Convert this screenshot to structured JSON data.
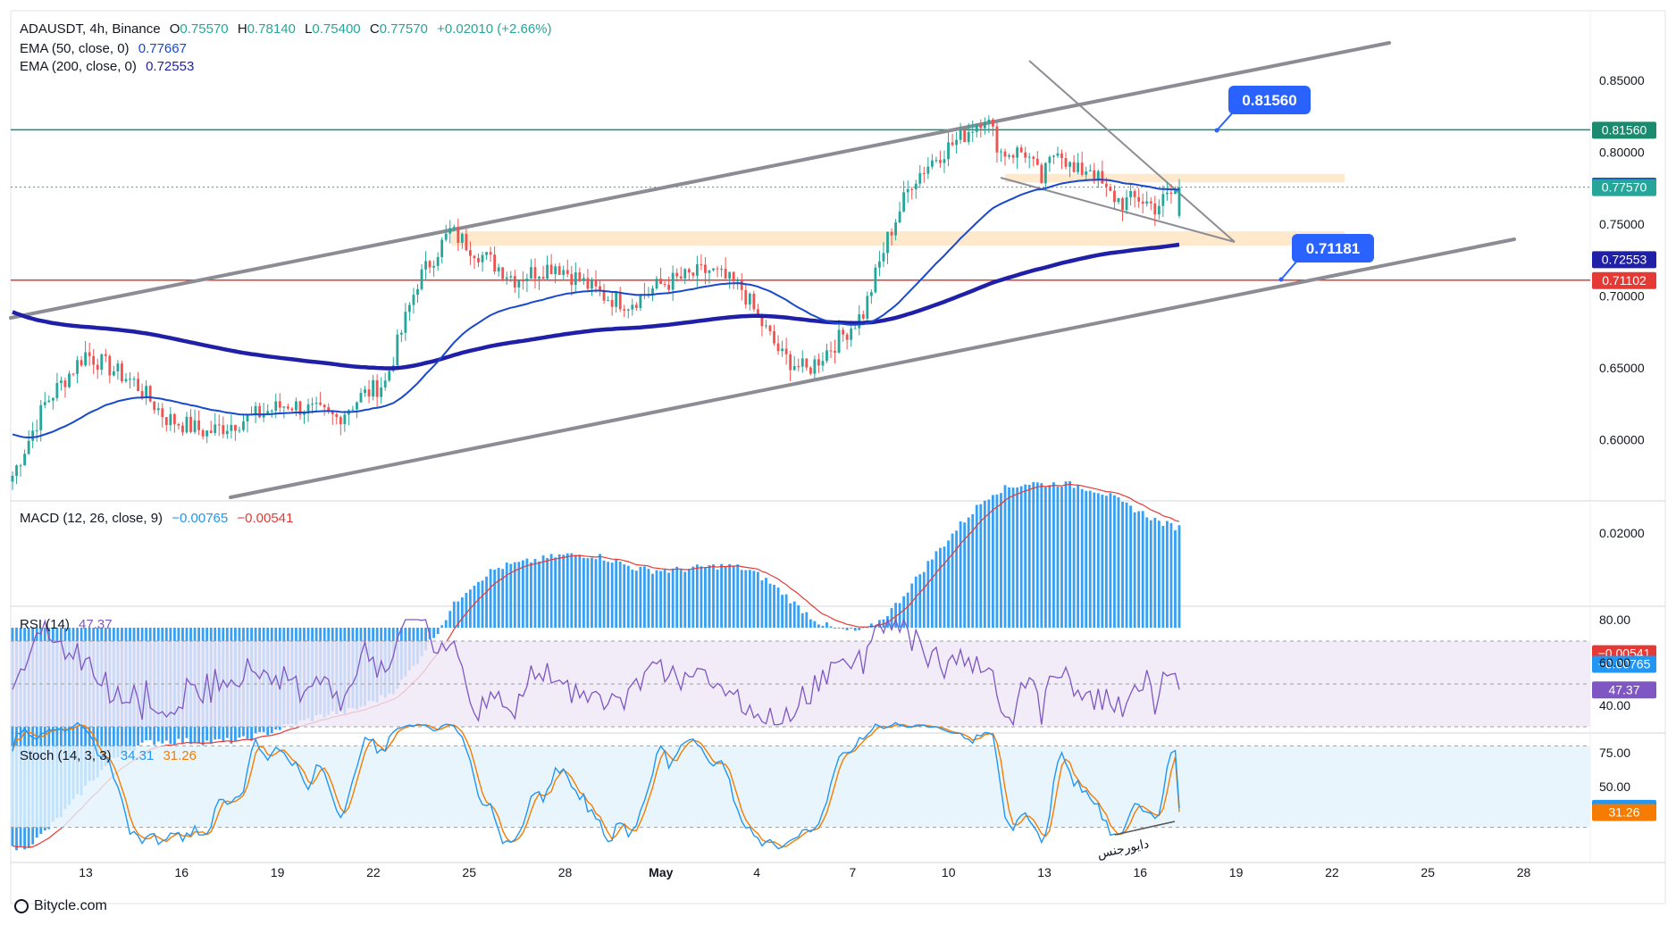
{
  "header": {
    "symbol": "ADAUSDT, 4h, Binance",
    "open_label": "O",
    "open": "0.75570",
    "high_label": "H",
    "high": "0.78140",
    "low_label": "L",
    "low": "0.75400",
    "close_label": "C",
    "close": "0.77570",
    "change": "+0.02010 (+2.66%)",
    "ema50_label": "EMA (50, close, 0)",
    "ema50_value": "0.77667",
    "ema200_label": "EMA (200, close, 0)",
    "ema200_value": "0.72553"
  },
  "macd_legend": {
    "label": "MACD (12, 26, close, 9)",
    "value1": "−0.00765",
    "value2": "−0.00541"
  },
  "rsi_legend": {
    "label": "RSI (14)",
    "value": "47.37"
  },
  "stoch_legend": {
    "label": "Stoch (14, 3, 3)",
    "value1": "34.31",
    "value2": "31.26"
  },
  "footer": {
    "brand": "Bitycle.com"
  },
  "colors": {
    "up": "#26a69a",
    "down": "#ef5350",
    "ema50": "#1848cc",
    "ema200": "#1f1fa8",
    "channel": "#8c8c94",
    "support": "#e53935",
    "resistance": "#1b8a6f",
    "zone": "#fde2bc",
    "callout": "#2962ff",
    "macd_hist": "#2196f3",
    "signal": "#e53935",
    "rsi": "#7e57c2",
    "stoch_k": "#2196f3",
    "stoch_d": "#f57c00"
  },
  "chart_data": [
    {
      "type": "candlestick",
      "title": "ADAUSDT, 4h, Binance",
      "x_ticks": [
        "13",
        "16",
        "19",
        "22",
        "25",
        "28",
        "May",
        "4",
        "7",
        "10",
        "13",
        "16",
        "19",
        "22",
        "25",
        "28"
      ],
      "y_ticks": [
        "0.85000",
        "0.80000",
        "0.75000",
        "0.70000",
        "0.65000",
        "0.60000"
      ],
      "ylim": [
        0.562,
        0.899
      ],
      "last_ohlc": {
        "open": 0.7557,
        "high": 0.7814,
        "low": 0.754,
        "close": 0.7757
      },
      "price_labels": [
        {
          "text": "0.81560",
          "value": 0.8156,
          "kind": "resistance"
        },
        {
          "text": "0.77667",
          "value": 0.77667,
          "kind": "ema50"
        },
        {
          "text": "0.77570",
          "value": 0.7757,
          "kind": "last"
        },
        {
          "text": "0.72553",
          "value": 0.72553,
          "kind": "ema200"
        },
        {
          "text": "0.71102",
          "value": 0.71102,
          "kind": "support"
        }
      ],
      "annotations": [
        {
          "text": "0.81560",
          "value": 0.8156
        },
        {
          "text": "0.71181",
          "value": 0.71181
        }
      ],
      "series": [
        {
          "name": "EMA (50, close, 0)",
          "last": 0.77667
        },
        {
          "name": "EMA (200, close, 0)",
          "last": 0.72553
        }
      ],
      "anchors": [
        [
          0,
          0.575
        ],
        [
          8,
          0.625
        ],
        [
          18,
          0.66
        ],
        [
          30,
          0.64
        ],
        [
          38,
          0.615
        ],
        [
          48,
          0.605
        ],
        [
          58,
          0.615
        ],
        [
          68,
          0.625
        ],
        [
          80,
          0.615
        ],
        [
          86,
          0.63
        ],
        [
          92,
          0.64
        ],
        [
          100,
          0.71
        ],
        [
          108,
          0.745
        ],
        [
          116,
          0.728
        ],
        [
          124,
          0.712
        ],
        [
          134,
          0.722
        ],
        [
          146,
          0.7
        ],
        [
          152,
          0.695
        ],
        [
          160,
          0.708
        ],
        [
          172,
          0.718
        ],
        [
          180,
          0.705
        ],
        [
          184,
          0.685
        ],
        [
          190,
          0.658
        ],
        [
          196,
          0.648
        ],
        [
          204,
          0.67
        ],
        [
          210,
          0.688
        ],
        [
          216,
          0.74
        ],
        [
          222,
          0.78
        ],
        [
          228,
          0.797
        ],
        [
          234,
          0.81
        ],
        [
          240,
          0.826
        ],
        [
          244,
          0.8
        ],
        [
          250,
          0.8
        ],
        [
          254,
          0.78
        ],
        [
          258,
          0.805
        ],
        [
          262,
          0.785
        ],
        [
          266,
          0.79
        ],
        [
          270,
          0.772
        ],
        [
          274,
          0.765
        ],
        [
          278,
          0.768
        ],
        [
          282,
          0.762
        ],
        [
          288,
          0.775
        ]
      ],
      "candle_count": 289
    },
    {
      "type": "bar",
      "title": "MACD (12, 26, close, 9)",
      "y_ticks": [
        "0.02000"
      ],
      "ylim": [
        -0.019,
        0.037
      ],
      "price_labels": [
        {
          "text": "−0.00541",
          "value": -0.00541,
          "kind": "signal"
        },
        {
          "text": "−0.00765",
          "value": -0.00765,
          "kind": "macd"
        }
      ]
    },
    {
      "type": "line",
      "title": "RSI (14)",
      "y_ticks": [
        "80.00",
        "60.00",
        "40.00"
      ],
      "ylim": [
        19.5,
        84
      ],
      "bands": [
        30,
        50,
        70
      ],
      "last": 47.37,
      "price_labels": [
        {
          "text": "47.37",
          "value": 47.37,
          "kind": "rsi"
        }
      ]
    },
    {
      "type": "line",
      "title": "Stoch (14, 3, 3)",
      "y_ticks": [
        "75.00",
        "50.00"
      ],
      "ylim": [
        -12,
        94
      ],
      "bands": [
        20,
        80
      ],
      "last_k": 34.31,
      "last_d": 31.26,
      "price_labels": [
        {
          "text": "34.31",
          "value": 34.31,
          "kind": "k"
        },
        {
          "text": "31.26",
          "value": 31.26,
          "kind": "d"
        }
      ],
      "annotation_text": "دایورجنس"
    }
  ]
}
